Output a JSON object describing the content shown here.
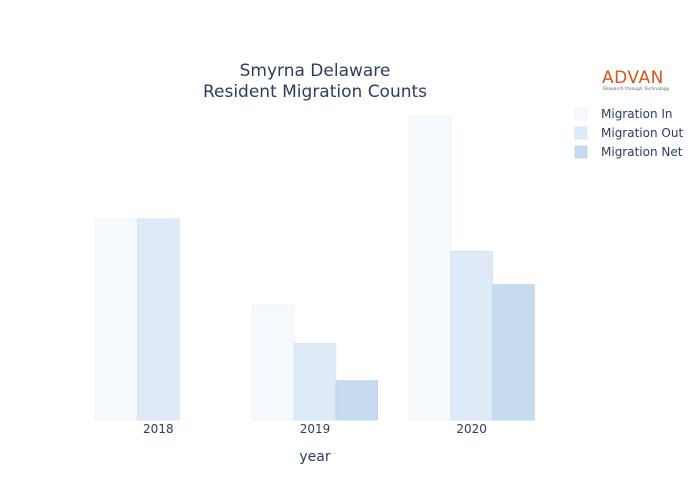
{
  "chart_data": {
    "type": "bar",
    "title_lines": [
      "Smyrna Delaware",
      "Resident Migration Counts"
    ],
    "xlabel": "year",
    "ylabel": "",
    "categories": [
      "2018",
      "2019",
      "2020"
    ],
    "ylim": [
      0,
      310
    ],
    "grid": false,
    "legend_position": "top-right",
    "series": [
      {
        "name": "Migration In",
        "values": [
          205,
          118,
          310
        ],
        "color": "#f6faff",
        "stroke": "#e9f1fb"
      },
      {
        "name": "Migration Out",
        "values": [
          205,
          78,
          172
        ],
        "color": "#deebf7",
        "stroke": "#d2e3f3"
      },
      {
        "name": "Migration Net",
        "values": [
          0,
          40,
          138
        ],
        "color": "#c6dbef",
        "stroke": "#b9d2ea"
      }
    ]
  },
  "logo": {
    "text": "ADVAN",
    "tagline": "Research through Technology"
  }
}
